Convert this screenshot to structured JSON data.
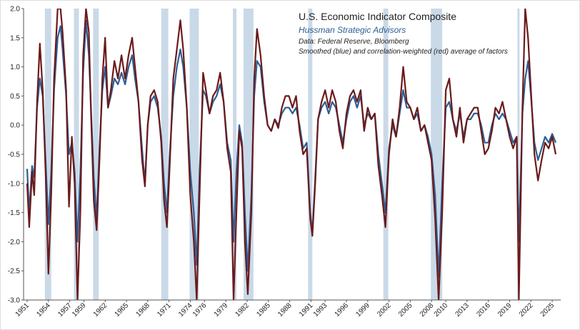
{
  "chart_data": {
    "type": "line",
    "title": "U.S. Economic Indicator Composite",
    "subtitle": "Hussman Strategic Advisors",
    "notes": [
      "Data: Federal Reserve, Bloomberg",
      "Smoothed (blue) and correlation-weighted (red) average of factors"
    ],
    "xlim": [
      1950.5,
      2026.2
    ],
    "ylim": [
      -3,
      2
    ],
    "xticks": [
      1951,
      1954,
      1957,
      1959,
      1962,
      1965,
      1968,
      1971,
      1974,
      1976,
      1979,
      1982,
      1985,
      1988,
      1991,
      1993,
      1996,
      1999,
      2002,
      2005,
      2008,
      2010,
      2013,
      2016,
      2019,
      2022,
      2025
    ],
    "yticks": [
      {
        "value": 2,
        "label": "2.0"
      },
      1.5,
      {
        "value": 1,
        "label": "1.0"
      },
      0.5,
      {
        "value": 0,
        "label": "0.0"
      },
      -0.5,
      {
        "value": -1,
        "label": "-1.0"
      },
      -1.5,
      {
        "value": -2,
        "label": "-2.0"
      },
      -2.5,
      {
        "value": -3,
        "label": "-3.0"
      }
    ],
    "recession_color": "#c9d9e8",
    "recessions": [
      [
        1953.5,
        1954.4
      ],
      [
        1957.6,
        1958.3
      ],
      [
        1960.3,
        1961.1
      ],
      [
        1969.9,
        1970.9
      ],
      [
        1973.9,
        1975.2
      ],
      [
        1980.0,
        1980.5
      ],
      [
        1981.5,
        1982.9
      ],
      [
        1990.6,
        1991.2
      ],
      [
        2001.2,
        2001.9
      ],
      [
        2007.9,
        2009.5
      ],
      [
        2020.1,
        2020.4
      ]
    ],
    "x": [
      1951.0,
      1951.3,
      1951.7,
      1952.0,
      1952.4,
      1952.8,
      1953.2,
      1953.6,
      1954.0,
      1954.4,
      1954.8,
      1955.3,
      1955.7,
      1956.0,
      1956.5,
      1956.9,
      1957.3,
      1957.7,
      1958.1,
      1958.5,
      1958.9,
      1959.3,
      1959.7,
      1960.0,
      1960.4,
      1960.8,
      1961.2,
      1961.6,
      1962.0,
      1962.4,
      1962.8,
      1963.3,
      1963.8,
      1964.3,
      1964.8,
      1965.3,
      1965.8,
      1966.2,
      1966.7,
      1967.2,
      1967.6,
      1968.0,
      1968.4,
      1968.9,
      1969.4,
      1969.9,
      1970.3,
      1970.7,
      1971.1,
      1971.6,
      1972.1,
      1972.6,
      1973.0,
      1973.5,
      1974.0,
      1974.5,
      1974.9,
      1975.3,
      1975.8,
      1976.2,
      1976.7,
      1977.2,
      1977.7,
      1978.2,
      1978.7,
      1979.2,
      1979.7,
      1980.1,
      1980.5,
      1980.9,
      1981.3,
      1981.7,
      1982.1,
      1982.6,
      1983.0,
      1983.4,
      1983.9,
      1984.4,
      1984.9,
      1985.4,
      1985.9,
      1986.4,
      1986.9,
      1987.4,
      1987.9,
      1988.4,
      1988.9,
      1989.4,
      1989.9,
      1990.4,
      1990.9,
      1991.2,
      1991.6,
      1992.0,
      1992.5,
      1993.0,
      1993.5,
      1994.0,
      1994.5,
      1995.0,
      1995.5,
      1996.0,
      1996.5,
      1997.0,
      1997.5,
      1998.0,
      1998.5,
      1999.0,
      1999.5,
      2000.0,
      2000.5,
      2001.0,
      2001.5,
      2002.0,
      2002.5,
      2003.0,
      2003.5,
      2004.0,
      2004.5,
      2005.0,
      2005.5,
      2006.0,
      2006.5,
      2007.0,
      2007.5,
      2008.0,
      2008.5,
      2009.0,
      2009.5,
      2010.0,
      2010.5,
      2011.0,
      2011.5,
      2012.0,
      2012.5,
      2013.0,
      2013.5,
      2014.0,
      2014.5,
      2015.0,
      2015.5,
      2016.0,
      2016.5,
      2017.0,
      2017.5,
      2018.0,
      2018.5,
      2019.0,
      2019.5,
      2020.0,
      2020.3,
      2020.8,
      2021.2,
      2021.6,
      2022.0,
      2022.5,
      2023.0,
      2023.5,
      2024.0,
      2024.5,
      2025.0,
      2025.5
    ],
    "series": [
      {
        "color": "#2e5d94",
        "values": [
          -0.75,
          -1.5,
          -0.7,
          -0.9,
          0.3,
          0.8,
          0.5,
          -0.6,
          -1.7,
          -0.8,
          0.6,
          1.5,
          1.7,
          1.3,
          0.5,
          -0.5,
          -0.3,
          -0.8,
          -2.0,
          -0.8,
          0.9,
          1.8,
          1.2,
          0.3,
          -0.9,
          -1.6,
          -0.4,
          0.6,
          1.0,
          0.3,
          0.5,
          0.8,
          0.7,
          0.9,
          0.7,
          1.0,
          1.2,
          0.8,
          0.4,
          -0.4,
          -1.0,
          0.0,
          0.4,
          0.5,
          0.3,
          -0.2,
          -1.0,
          -1.5,
          -0.5,
          0.5,
          1.0,
          1.3,
          1.0,
          0.3,
          -0.8,
          -1.5,
          -2.4,
          -0.8,
          0.6,
          0.5,
          0.2,
          0.4,
          0.5,
          0.7,
          0.4,
          -0.3,
          -0.6,
          -2.0,
          -0.8,
          0.0,
          -0.3,
          -1.5,
          -2.5,
          -1.2,
          0.5,
          1.1,
          1.0,
          0.4,
          0.0,
          -0.1,
          0.1,
          0.0,
          0.2,
          0.3,
          0.3,
          0.2,
          0.3,
          0.0,
          -0.4,
          -0.3,
          -1.5,
          -1.85,
          -0.9,
          0.1,
          0.3,
          0.4,
          0.2,
          0.4,
          0.3,
          0.0,
          -0.3,
          0.1,
          0.4,
          0.5,
          0.3,
          0.5,
          0.0,
          0.2,
          0.1,
          0.2,
          -0.5,
          -1.0,
          -1.5,
          -0.4,
          0.0,
          -0.2,
          0.2,
          0.6,
          0.3,
          0.3,
          0.1,
          0.2,
          -0.1,
          0.0,
          -0.2,
          -0.5,
          -1.2,
          -2.6,
          -1.0,
          0.3,
          0.4,
          0.1,
          -0.1,
          0.2,
          -0.2,
          0.1,
          0.1,
          0.2,
          0.2,
          0.0,
          -0.3,
          -0.3,
          0.0,
          0.2,
          0.1,
          0.2,
          0.1,
          -0.1,
          -0.3,
          -0.2,
          -2.0,
          0.2,
          0.8,
          1.1,
          0.5,
          -0.3,
          -0.6,
          -0.4,
          -0.2,
          -0.3,
          -0.15,
          -0.3
        ]
      },
      {
        "color": "#6b1a1a",
        "values": [
          -1.0,
          -1.75,
          -0.8,
          -1.2,
          0.4,
          1.4,
          0.6,
          -0.8,
          -2.55,
          -1.2,
          0.8,
          2.0,
          2.0,
          1.6,
          0.6,
          -1.4,
          -0.2,
          -1.0,
          -3.0,
          -1.5,
          1.2,
          2.0,
          1.6,
          0.2,
          -1.3,
          -1.8,
          -0.6,
          0.8,
          1.5,
          0.3,
          0.6,
          1.1,
          0.8,
          1.2,
          0.8,
          1.2,
          1.5,
          1.0,
          0.4,
          -0.6,
          -1.05,
          0.0,
          0.5,
          0.6,
          0.4,
          -0.3,
          -1.3,
          -1.75,
          -0.7,
          0.8,
          1.3,
          1.8,
          1.3,
          0.3,
          -1.2,
          -2.0,
          -3.0,
          -1.2,
          0.9,
          0.6,
          0.2,
          0.5,
          0.6,
          0.9,
          0.4,
          -0.4,
          -0.8,
          -3.0,
          -1.5,
          -0.1,
          -0.4,
          -2.0,
          -2.9,
          -1.5,
          0.8,
          1.65,
          1.2,
          0.5,
          0.0,
          -0.1,
          0.1,
          -0.05,
          0.3,
          0.5,
          0.5,
          0.3,
          0.5,
          -0.1,
          -0.5,
          -0.4,
          -1.6,
          -1.9,
          -1.0,
          0.1,
          0.4,
          0.6,
          0.3,
          0.6,
          0.4,
          -0.1,
          -0.4,
          0.2,
          0.5,
          0.6,
          0.4,
          0.6,
          -0.1,
          0.3,
          0.1,
          0.2,
          -0.7,
          -1.2,
          -1.75,
          -0.5,
          0.1,
          -0.2,
          0.3,
          1.0,
          0.4,
          0.3,
          0.1,
          0.3,
          -0.1,
          0.0,
          -0.3,
          -0.6,
          -1.6,
          -3.0,
          -1.5,
          0.6,
          0.8,
          0.1,
          -0.2,
          0.3,
          -0.3,
          0.1,
          0.2,
          0.3,
          0.3,
          -0.1,
          -0.5,
          -0.4,
          -0.1,
          0.3,
          0.2,
          0.4,
          0.1,
          -0.2,
          -0.4,
          -0.2,
          -3.0,
          0.3,
          2.0,
          1.5,
          0.6,
          -0.5,
          -0.95,
          -0.6,
          -0.3,
          -0.4,
          -0.2,
          -0.5
        ]
      }
    ]
  }
}
